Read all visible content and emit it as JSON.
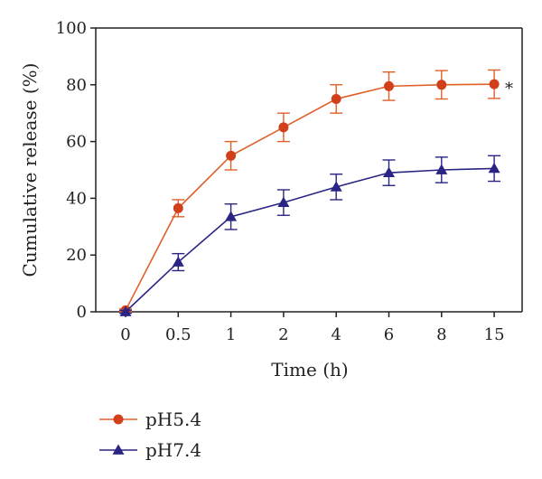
{
  "chart_data": {
    "type": "line",
    "xlabel": "Time (h)",
    "ylabel": "Cumulative release (%)",
    "categories": [
      "0",
      "0.5",
      "1",
      "2",
      "4",
      "6",
      "8",
      "15"
    ],
    "ylim": [
      0,
      100
    ],
    "yticks": [
      0,
      20,
      40,
      60,
      80,
      100
    ],
    "grid": false,
    "legend_position": "bottom-left",
    "annotation": "*",
    "series": [
      {
        "name": "pH5.4",
        "color": "#d2401b",
        "line_color": "#e0602a",
        "marker": "circle",
        "values": [
          0.5,
          36.5,
          55,
          65,
          75,
          79.5,
          80,
          80.2
        ],
        "errors": [
          0.5,
          3,
          5,
          5,
          5,
          5,
          5,
          5
        ]
      },
      {
        "name": "pH7.4",
        "color": "#2a2585",
        "line_color": "#2a2585",
        "marker": "triangle",
        "values": [
          0,
          17.5,
          33.5,
          38.5,
          44,
          49,
          50,
          50.5
        ],
        "errors": [
          0.5,
          3,
          4.5,
          4.5,
          4.5,
          4.5,
          4.5,
          4.5
        ]
      }
    ]
  }
}
